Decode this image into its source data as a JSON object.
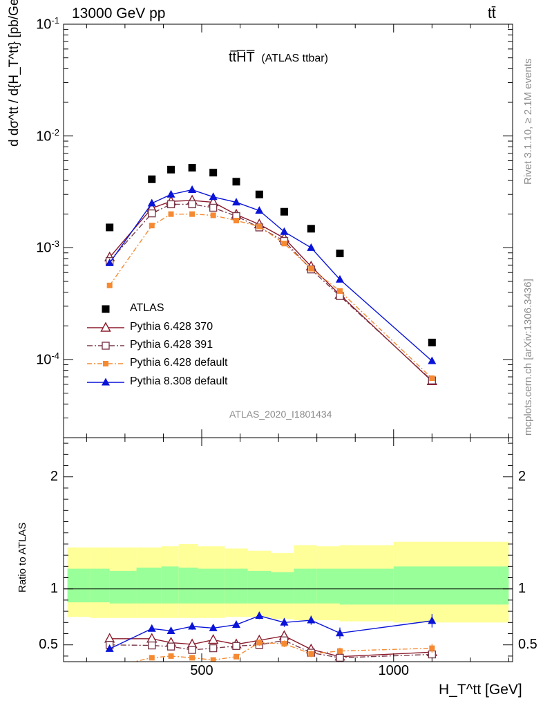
{
  "header": {
    "energy": "13000 GeV pp",
    "process": "tt̄",
    "plot_title": "tt̅H̅T̅",
    "plot_subtitle": "(ATLAS ttbar)",
    "analysis_id": "ATLAS_2020_I1801434",
    "rivet_note": "Rivet 3.1.10, ≥ 2.1M events",
    "mcplots_note": "mcplots.cern.ch [arXiv:1306.3436]"
  },
  "axes": {
    "ylabel_main": "d dσ^tt / d{H_T^tt} [pb/GeV]",
    "ylabel_ratio": "Ratio to ATLAS",
    "xlabel": "H_T^tt [GeV]"
  },
  "colors": {
    "atlas": "#000000",
    "p6_370": "#8b1a2b",
    "p6_391": "#7a3a4a",
    "p6_default": "#f58a32",
    "p8_default": "#0a14d8",
    "band_outer": "#ffff99",
    "band_inner": "#99ff99"
  },
  "chart_data": [
    {
      "type": "scatter",
      "panel": "main",
      "yscale": "log",
      "xlim": [
        140,
        1310
      ],
      "ylim": [
        2e-05,
        0.1
      ],
      "x_ticks": [
        500,
        1000
      ],
      "y_ticks": [
        {
          "value": 0.1,
          "label": "10^-1"
        },
        {
          "value": 0.01,
          "label": "10^-2"
        },
        {
          "value": 0.001,
          "label": "10^-3"
        },
        {
          "value": 0.0001,
          "label": "10^-4"
        }
      ],
      "series": [
        {
          "name": "ATLAS",
          "key": "atlas",
          "style": "data",
          "x": [
            260,
            370,
            420,
            475,
            530,
            590,
            650,
            715,
            785,
            860,
            1100
          ],
          "y": [
            0.00152,
            0.0041,
            0.005,
            0.0052,
            0.0047,
            0.0039,
            0.003,
            0.0021,
            0.00148,
            0.00089,
            0.000142
          ]
        },
        {
          "name": "Pythia 6.428 370",
          "key": "p6_370",
          "style": "open-triangle",
          "x": [
            260,
            370,
            420,
            475,
            530,
            590,
            650,
            715,
            785,
            860,
            1100
          ],
          "y": [
            0.00082,
            0.00226,
            0.0026,
            0.00265,
            0.00255,
            0.00198,
            0.00162,
            0.00122,
            0.00068,
            0.00038,
            6.4e-05
          ]
        },
        {
          "name": "Pythia 6.428 391",
          "key": "p6_391",
          "style": "open-square",
          "x": [
            260,
            370,
            420,
            475,
            530,
            590,
            650,
            715,
            785,
            860,
            1100
          ],
          "y": [
            0.00076,
            0.00203,
            0.00245,
            0.00245,
            0.00228,
            0.00192,
            0.00152,
            0.00115,
            0.00064,
            0.00037,
            6.5e-05
          ]
        },
        {
          "name": "Pythia 6.428 default",
          "key": "p6_default",
          "style": "filled-square-small",
          "x": [
            260,
            370,
            420,
            475,
            530,
            590,
            650,
            715,
            785,
            860,
            1100
          ],
          "y": [
            0.00046,
            0.00158,
            0.002,
            0.002,
            0.00195,
            0.00175,
            0.00155,
            0.00109,
            0.00065,
            0.00041,
            6.8e-05
          ]
        },
        {
          "name": "Pythia 8.308 default",
          "key": "p8_default",
          "style": "filled-triangle",
          "x": [
            260,
            370,
            420,
            475,
            530,
            590,
            650,
            715,
            785,
            860,
            1100
          ],
          "y": [
            0.00073,
            0.0025,
            0.003,
            0.0033,
            0.00285,
            0.00255,
            0.00215,
            0.00139,
            0.001,
            0.00052,
            9.7e-05
          ]
        }
      ]
    },
    {
      "type": "line",
      "panel": "ratio",
      "xlim": [
        140,
        1310
      ],
      "ylim": [
        0.35,
        2.35
      ],
      "y_ticks": [
        0.5,
        1,
        2
      ],
      "x_ticks": [
        500,
        1000
      ],
      "band_edges": [
        150,
        210,
        260,
        330,
        395,
        440,
        490,
        560,
        620,
        680,
        740,
        800,
        860,
        1000,
        1300
      ],
      "band_outer": [
        [
          0.75,
          1.37
        ],
        [
          0.74,
          1.37
        ],
        [
          0.74,
          1.37
        ],
        [
          0.74,
          1.37
        ],
        [
          0.74,
          1.38
        ],
        [
          0.74,
          1.4
        ],
        [
          0.74,
          1.38
        ],
        [
          0.75,
          1.36
        ],
        [
          0.75,
          1.34
        ],
        [
          0.73,
          1.32
        ],
        [
          0.72,
          1.39
        ],
        [
          0.72,
          1.38
        ],
        [
          0.71,
          1.39
        ],
        [
          0.7,
          1.42
        ]
      ],
      "band_inner": [
        [
          0.88,
          1.18
        ],
        [
          0.88,
          1.18
        ],
        [
          0.87,
          1.16
        ],
        [
          0.87,
          1.19
        ],
        [
          0.87,
          1.2
        ],
        [
          0.87,
          1.19
        ],
        [
          0.87,
          1.18
        ],
        [
          0.87,
          1.18
        ],
        [
          0.87,
          1.16
        ],
        [
          0.87,
          1.15
        ],
        [
          0.87,
          1.18
        ],
        [
          0.87,
          1.18
        ],
        [
          0.86,
          1.18
        ],
        [
          0.86,
          1.2
        ]
      ],
      "series": [
        {
          "key": "p6_370",
          "style": "open-triangle",
          "x": [
            260,
            370,
            420,
            475,
            530,
            590,
            650,
            715,
            785,
            860,
            1100
          ],
          "y": [
            0.555,
            0.555,
            0.52,
            0.505,
            0.545,
            0.505,
            0.54,
            0.58,
            0.46,
            0.395,
            0.435
          ],
          "err": [
            0.02,
            0.02,
            0.025,
            0.02,
            0.02,
            0.02,
            0.025,
            0.03,
            0.03,
            0.02,
            0.03
          ]
        },
        {
          "key": "p6_391",
          "style": "open-square",
          "x": [
            260,
            370,
            420,
            475,
            530,
            590,
            650,
            715,
            785,
            860,
            1100
          ],
          "y": [
            0.5,
            0.495,
            0.485,
            0.455,
            0.47,
            0.49,
            0.5,
            0.54,
            0.43,
            0.385,
            0.415
          ],
          "err": [
            0.02,
            0.02,
            0.02,
            0.02,
            0.02,
            0.02,
            0.02,
            0.03,
            0.03,
            0.02,
            0.03
          ]
        },
        {
          "key": "p6_default",
          "style": "filled-square-small",
          "x": [
            260,
            370,
            420,
            475,
            530,
            590,
            650,
            715,
            785,
            860,
            1100
          ],
          "y": [
            0.3,
            0.385,
            0.4,
            0.385,
            0.365,
            0.395,
            0.52,
            0.51,
            0.42,
            0.445,
            0.47
          ],
          "err": [
            0.02,
            0.02,
            0.02,
            0.02,
            0.02,
            0.02,
            0.03,
            0.03,
            0.03,
            0.03,
            0.04
          ]
        },
        {
          "key": "p8_default",
          "style": "filled-triangle",
          "x": [
            260,
            370,
            420,
            475,
            530,
            590,
            650,
            715,
            785,
            860,
            1100
          ],
          "y": [
            0.465,
            0.645,
            0.625,
            0.665,
            0.65,
            0.68,
            0.76,
            0.7,
            0.72,
            0.605,
            0.715
          ],
          "err": [
            0.02,
            0.025,
            0.025,
            0.03,
            0.025,
            0.03,
            0.03,
            0.04,
            0.04,
            0.05,
            0.06
          ]
        }
      ]
    }
  ]
}
